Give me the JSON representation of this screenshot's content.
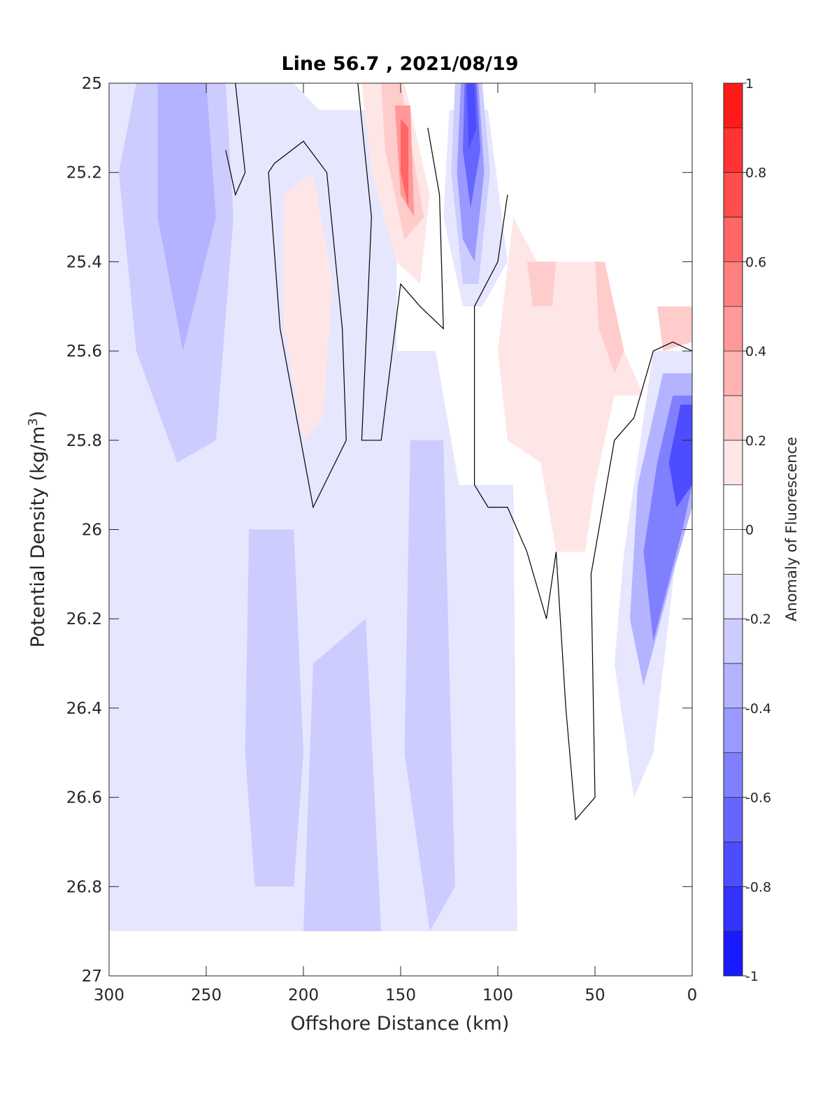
{
  "chart_data": {
    "type": "contourf",
    "title": "Line 56.7 , 2021/08/19",
    "xlabel": "Offshore Distance (km)",
    "ylabel_main": "Potential Density (kg/m",
    "ylabel_sup": "3",
    "ylabel_end": ")",
    "xlim": [
      300,
      0
    ],
    "ylim": [
      25,
      27
    ],
    "x_reversed": true,
    "y_reversed": true,
    "xticks": [
      300,
      250,
      200,
      150,
      100,
      50,
      0
    ],
    "yticks": [
      25,
      25.2,
      25.4,
      25.6,
      25.8,
      26,
      26.2,
      26.4,
      26.6,
      26.8,
      27
    ],
    "colorbar": {
      "label": "Anomaly of Fluorescence",
      "limits": [
        -1,
        1
      ],
      "step": 0.1,
      "ticks": [
        1,
        0.8,
        0.6,
        0.4,
        0.2,
        0,
        -0.2,
        -0.4,
        -0.6,
        -0.8,
        -1
      ],
      "colors_top_to_bottom": [
        "#ff1a1a",
        "#ff3333",
        "#ff4d4d",
        "#ff6666",
        "#ff8080",
        "#ff9999",
        "#ffb3b3",
        "#ffcccc",
        "#ffe6e6",
        "#ffffff",
        "#ffffff",
        "#e6e6ff",
        "#ccccff",
        "#b3b3ff",
        "#9999ff",
        "#8080ff",
        "#6666ff",
        "#4d4dff",
        "#3333ff",
        "#1a1aff"
      ]
    },
    "zero_contour_color": "#000000",
    "regions": [
      {
        "level": -0.1,
        "points": [
          [
            300,
            25
          ],
          [
            205,
            25
          ],
          [
            192,
            25.06
          ],
          [
            152,
            25.06
          ],
          [
            152,
            25.6
          ],
          [
            132,
            25.6
          ],
          [
            120,
            25.9
          ],
          [
            92,
            25.9
          ],
          [
            90,
            26.9
          ],
          [
            300,
            26.9
          ]
        ]
      },
      {
        "level": -0.2,
        "points": [
          [
            286,
            25
          ],
          [
            240,
            25
          ],
          [
            236,
            25.3
          ],
          [
            245,
            25.8
          ],
          [
            265,
            25.85
          ],
          [
            286,
            25.6
          ],
          [
            295,
            25.2
          ]
        ]
      },
      {
        "level": -0.3,
        "points": [
          [
            275,
            25
          ],
          [
            250,
            25
          ],
          [
            245,
            25.3
          ],
          [
            262,
            25.6
          ],
          [
            275,
            25.3
          ]
        ]
      },
      {
        "level": -0.2,
        "points": [
          [
            228,
            26
          ],
          [
            205,
            26
          ],
          [
            200,
            26.5
          ],
          [
            205,
            26.8
          ],
          [
            225,
            26.8
          ],
          [
            230,
            26.5
          ]
        ]
      },
      {
        "level": -0.2,
        "points": [
          [
            195,
            26.3
          ],
          [
            168,
            26.2
          ],
          [
            160,
            26.9
          ],
          [
            200,
            26.9
          ]
        ]
      },
      {
        "level": -0.2,
        "points": [
          [
            145,
            25.8
          ],
          [
            128,
            25.8
          ],
          [
            122,
            26.8
          ],
          [
            135,
            26.9
          ],
          [
            148,
            26.5
          ]
        ]
      },
      {
        "level": -0.1,
        "points": [
          [
            125,
            25.06
          ],
          [
            105,
            25.06
          ],
          [
            95,
            25.4
          ],
          [
            108,
            25.5
          ],
          [
            118,
            25.5
          ],
          [
            128,
            25.3
          ]
        ]
      },
      {
        "level": -0.2,
        "points": [
          [
            122,
            25
          ],
          [
            108,
            25
          ],
          [
            104,
            25.2
          ],
          [
            110,
            25.45
          ],
          [
            118,
            25.45
          ],
          [
            124,
            25.2
          ]
        ]
      },
      {
        "level": -0.4,
        "points": [
          [
            119,
            25
          ],
          [
            110,
            25
          ],
          [
            107,
            25.2
          ],
          [
            112,
            25.4
          ],
          [
            118,
            25.35
          ],
          [
            121,
            25.2
          ]
        ]
      },
      {
        "level": -0.6,
        "points": [
          [
            117,
            25
          ],
          [
            111,
            25
          ],
          [
            109,
            25.15
          ],
          [
            114,
            25.28
          ],
          [
            118,
            25.15
          ]
        ]
      },
      {
        "level": -0.7,
        "points": [
          [
            116,
            25
          ],
          [
            112,
            25
          ],
          [
            111,
            25.1
          ],
          [
            115,
            25.15
          ]
        ]
      },
      {
        "level": 0.1,
        "points": [
          [
            170,
            25
          ],
          [
            148,
            25
          ],
          [
            135,
            25.25
          ],
          [
            140,
            25.45
          ],
          [
            152,
            25.4
          ],
          [
            165,
            25.2
          ]
        ]
      },
      {
        "level": 0.2,
        "points": [
          [
            160,
            25
          ],
          [
            150,
            25
          ],
          [
            138,
            25.3
          ],
          [
            148,
            25.35
          ],
          [
            158,
            25.15
          ]
        ]
      },
      {
        "level": 0.4,
        "points": [
          [
            153,
            25.05
          ],
          [
            145,
            25.05
          ],
          [
            143,
            25.3
          ],
          [
            150,
            25.25
          ]
        ]
      },
      {
        "level": 0.6,
        "points": [
          [
            150,
            25.08
          ],
          [
            146,
            25.1
          ],
          [
            146,
            25.28
          ],
          [
            150,
            25.2
          ]
        ]
      },
      {
        "level": 0.1,
        "points": [
          [
            210,
            25.25
          ],
          [
            195,
            25.2
          ],
          [
            185,
            25.45
          ],
          [
            190,
            25.75
          ],
          [
            200,
            25.8
          ],
          [
            210,
            25.55
          ]
        ]
      },
      {
        "level": 0.1,
        "points": [
          [
            100,
            25.6
          ],
          [
            92,
            25.3
          ],
          [
            80,
            25.4
          ],
          [
            45,
            25.4
          ],
          [
            35,
            25.6
          ],
          [
            25,
            25.7
          ],
          [
            40,
            25.7
          ],
          [
            50,
            25.9
          ],
          [
            55,
            26.05
          ],
          [
            70,
            26.05
          ],
          [
            78,
            25.85
          ],
          [
            95,
            25.8
          ]
        ]
      },
      {
        "level": 0.2,
        "points": [
          [
            85,
            25.4
          ],
          [
            70,
            25.4
          ],
          [
            72,
            25.5
          ],
          [
            82,
            25.5
          ]
        ]
      },
      {
        "level": 0.2,
        "points": [
          [
            50,
            25.4
          ],
          [
            45,
            25.4
          ],
          [
            35,
            25.6
          ],
          [
            40,
            25.65
          ],
          [
            48,
            25.55
          ]
        ]
      },
      {
        "level": 0.2,
        "points": [
          [
            18,
            25.5
          ],
          [
            0,
            25.5
          ],
          [
            0,
            25.58
          ],
          [
            15,
            25.6
          ]
        ]
      },
      {
        "level": -0.1,
        "points": [
          [
            20,
            25.6
          ],
          [
            0,
            25.6
          ],
          [
            0,
            25.9
          ],
          [
            8,
            26.05
          ],
          [
            20,
            26.5
          ],
          [
            30,
            26.6
          ],
          [
            40,
            26.3
          ],
          [
            35,
            26.05
          ]
        ]
      },
      {
        "level": -0.3,
        "points": [
          [
            15,
            25.65
          ],
          [
            0,
            25.65
          ],
          [
            0,
            25.95
          ],
          [
            10,
            26.1
          ],
          [
            25,
            26.35
          ],
          [
            32,
            26.2
          ],
          [
            28,
            25.9
          ]
        ]
      },
      {
        "level": -0.5,
        "points": [
          [
            10,
            25.7
          ],
          [
            0,
            25.7
          ],
          [
            0,
            25.9
          ],
          [
            5,
            26
          ],
          [
            20,
            26.25
          ],
          [
            25,
            26.05
          ],
          [
            18,
            25.85
          ]
        ]
      },
      {
        "level": -0.7,
        "points": [
          [
            6,
            25.72
          ],
          [
            0,
            25.72
          ],
          [
            0,
            25.9
          ],
          [
            8,
            25.95
          ],
          [
            12,
            25.85
          ]
        ]
      }
    ],
    "zero_contours": [
      {
        "points": [
          [
            235,
            25
          ],
          [
            230,
            25.2
          ],
          [
            235,
            25.25
          ],
          [
            240,
            25.15
          ]
        ],
        "closed": false
      },
      {
        "points": [
          [
            215,
            25.18
          ],
          [
            200,
            25.13
          ],
          [
            188,
            25.2
          ],
          [
            180,
            25.55
          ],
          [
            178,
            25.8
          ],
          [
            195,
            25.95
          ],
          [
            212,
            25.55
          ],
          [
            218,
            25.2
          ]
        ],
        "closed": true
      },
      {
        "points": [
          [
            172,
            25
          ],
          [
            165,
            25.3
          ],
          [
            170,
            25.8
          ],
          [
            160,
            25.8
          ],
          [
            150,
            25.45
          ],
          [
            140,
            25.5
          ],
          [
            128,
            25.55
          ],
          [
            130,
            25.25
          ],
          [
            136,
            25.1
          ]
        ],
        "closed": false
      },
      {
        "points": [
          [
            95,
            25.25
          ],
          [
            100,
            25.4
          ],
          [
            112,
            25.5
          ],
          [
            112,
            25.9
          ],
          [
            105,
            25.95
          ],
          [
            95,
            25.95
          ],
          [
            85,
            26.05
          ],
          [
            75,
            26.2
          ],
          [
            70,
            26.05
          ],
          [
            65,
            26.4
          ],
          [
            60,
            26.65
          ],
          [
            50,
            26.6
          ],
          [
            52,
            26.1
          ],
          [
            40,
            25.8
          ],
          [
            30,
            25.75
          ],
          [
            20,
            25.6
          ],
          [
            10,
            25.58
          ],
          [
            0,
            25.6
          ]
        ],
        "closed": false
      }
    ]
  }
}
